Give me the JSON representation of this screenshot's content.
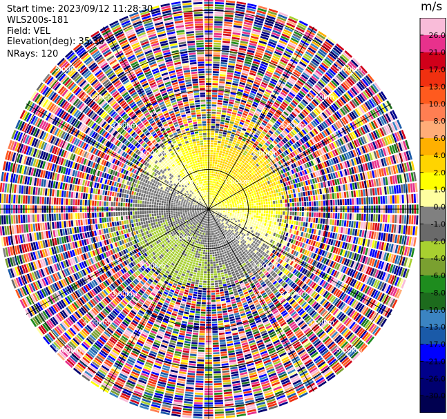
{
  "header": {
    "start_time": "Start time: 2023/09/12 11:28:30",
    "instrument": "WLS200s-181",
    "field": "Field: VEL",
    "elevation": "Elevation(deg): 35.30",
    "nrays": "NRays: 120"
  },
  "chart_data": {
    "type": "heatmap",
    "projection": "polar",
    "field": "VEL",
    "nrays": 120,
    "range_ring_labels": [
      "1.00km",
      "2.00km",
      "3.00km",
      "4.00km",
      "5.00km"
    ],
    "max_range_km": 5.3,
    "colorbar": {
      "unit": "m/s",
      "ticks": [
        "26.0",
        "21.0",
        "17.0",
        "13.0",
        "10.0",
        "8.0",
        "6.0",
        "4.0",
        "2.0",
        "1.0",
        "0.0",
        "-1.0",
        "-2.0",
        "-4.0",
        "-6.0",
        "-8.0",
        "-10.0",
        "-13.0",
        "-17.0",
        "-21.0",
        "-26.0",
        "-30.0"
      ],
      "colors": [
        "#f9bcd9",
        "#e8318c",
        "#d0001a",
        "#f03010",
        "#ff5a1e",
        "#ff7e52",
        "#ffad78",
        "#ffb000",
        "#ffd400",
        "#ffff00",
        "#ffffa0",
        "#808080",
        "#6a6a6a",
        "#a8d030",
        "#7aa030",
        "#1e8c1e",
        "#1d6b1d",
        "#3b84c2",
        "#1a5aa8",
        "#0000ff",
        "#00008b",
        "#000070",
        "#000050"
      ]
    }
  }
}
